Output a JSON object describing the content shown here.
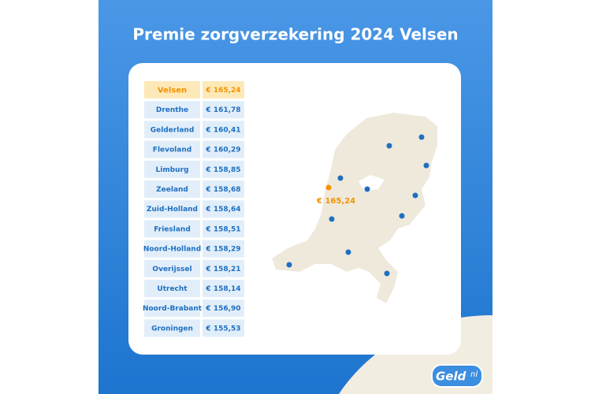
{
  "title": "Premie zorgverzekering 2024 Velsen",
  "table": {
    "rows": [
      [
        "Velsen",
        "€ 165,24"
      ],
      [
        "Drenthe",
        "€ 161,78"
      ],
      [
        "Gelderland",
        "€ 160,41"
      ],
      [
        "Flevoland",
        "€ 160,29"
      ],
      [
        "Limburg",
        "€ 158,85"
      ],
      [
        "Zeeland",
        "€ 158,68"
      ],
      [
        "Zuid-Holland",
        "€ 158,64"
      ],
      [
        "Friesland",
        "€ 158,51"
      ],
      [
        "Noord-Holland",
        "€ 158,29"
      ],
      [
        "Overijssel",
        "€ 158,21"
      ],
      [
        "Utrecht",
        "€ 158,14"
      ],
      [
        "Noord-Brabant",
        "€ 156,90"
      ],
      [
        "Groningen",
        "€ 155,53"
      ]
    ]
  },
  "map": {
    "label": "€ 165,24"
  },
  "logo": {
    "name": "Geld",
    "suffix": "nl"
  }
}
